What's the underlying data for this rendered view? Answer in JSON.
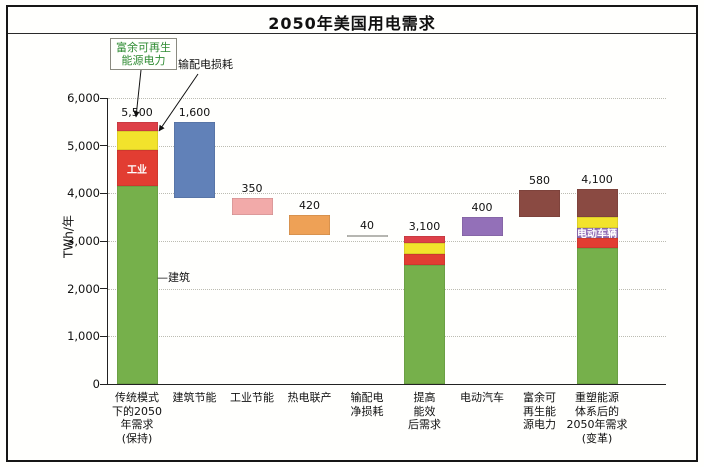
{
  "chart_data": {
    "type": "bar",
    "variant": "waterfall_stacked",
    "title": "2050年美国用电需求",
    "ylabel": "TWh/年",
    "ylim": [
      0,
      6000
    ],
    "ytick_values": [
      0,
      1000,
      2000,
      3000,
      4000,
      5000,
      6000
    ],
    "ytick_labels": [
      "0",
      "1,000",
      "2,000",
      "3,000",
      "4,000",
      "5,000",
      "6,000"
    ],
    "grid": "dotted-horizontal",
    "legend": "none",
    "palette": {
      "green": "#76b04b",
      "red": "#e23d32",
      "yellow": "#f2e32c",
      "crimson": "#de4048",
      "blue": "#6181b8",
      "pink": "#f2aaa9",
      "orange": "#eea156",
      "gray": "#c9c9c3",
      "purple": "#9370b8",
      "maroon": "#8a4a42"
    },
    "bars": [
      {
        "category_lines": [
          "传统模式",
          "下的2050",
          "年需求",
          "(保持)"
        ],
        "value_label": "5,500",
        "total": 5500,
        "segments": [
          {
            "from": 0,
            "to": 4150,
            "color": "green",
            "name": "建筑"
          },
          {
            "from": 4150,
            "to": 4900,
            "color": "red",
            "name": "工业",
            "inside_label": "工业"
          },
          {
            "from": 4900,
            "to": 5300,
            "color": "yellow",
            "name": "输配电损耗"
          },
          {
            "from": 5300,
            "to": 5500,
            "color": "crimson",
            "name": "富余可再生能源电力"
          }
        ]
      },
      {
        "category_lines": [
          "建筑节能"
        ],
        "value_label": "1,600",
        "total": 1600,
        "segments": [
          {
            "from": 3900,
            "to": 5500,
            "color": "blue"
          }
        ]
      },
      {
        "category_lines": [
          "工业节能"
        ],
        "value_label": "350",
        "total": 350,
        "segments": [
          {
            "from": 3550,
            "to": 3900,
            "color": "pink"
          }
        ]
      },
      {
        "category_lines": [
          "热电联产"
        ],
        "value_label": "420",
        "total": 420,
        "segments": [
          {
            "from": 3130,
            "to": 3550,
            "color": "orange"
          }
        ]
      },
      {
        "category_lines": [
          "输配电",
          "净损耗"
        ],
        "value_label": "40",
        "total": 40,
        "segments": [
          {
            "from": 3090,
            "to": 3130,
            "color": "gray"
          }
        ]
      },
      {
        "category_lines": [
          "提高",
          "能效",
          "后需求"
        ],
        "value_label": "3,100",
        "total": 3100,
        "segments": [
          {
            "from": 0,
            "to": 2500,
            "color": "green"
          },
          {
            "from": 2500,
            "to": 2720,
            "color": "red"
          },
          {
            "from": 2720,
            "to": 2960,
            "color": "yellow"
          },
          {
            "from": 2960,
            "to": 3100,
            "color": "crimson"
          }
        ]
      },
      {
        "category_lines": [
          "电动汽车"
        ],
        "value_label": "400",
        "total": 400,
        "segments": [
          {
            "from": 3100,
            "to": 3500,
            "color": "purple"
          }
        ]
      },
      {
        "category_lines": [
          "富余可",
          "再生能",
          "源电力"
        ],
        "value_label": "580",
        "total": 580,
        "segments": [
          {
            "from": 3500,
            "to": 4080,
            "color": "maroon"
          }
        ]
      },
      {
        "category_lines": [
          "重塑能源",
          "体系后的",
          "2050年需求",
          "(变革)"
        ],
        "value_label": "4,100",
        "total": 4100,
        "segments": [
          {
            "from": 0,
            "to": 2860,
            "color": "green"
          },
          {
            "from": 2860,
            "to": 3070,
            "color": "red"
          },
          {
            "from": 3070,
            "to": 3280,
            "color": "purple",
            "name": "电动车辆",
            "inside_label": "电动车辆"
          },
          {
            "from": 3280,
            "to": 3500,
            "color": "yellow"
          },
          {
            "from": 3500,
            "to": 4100,
            "color": "maroon"
          }
        ]
      }
    ],
    "annotations": {
      "surplus_renewable": "富余可再生\n能源电力",
      "td_loss": "输配电损耗",
      "building": "—建筑"
    }
  }
}
